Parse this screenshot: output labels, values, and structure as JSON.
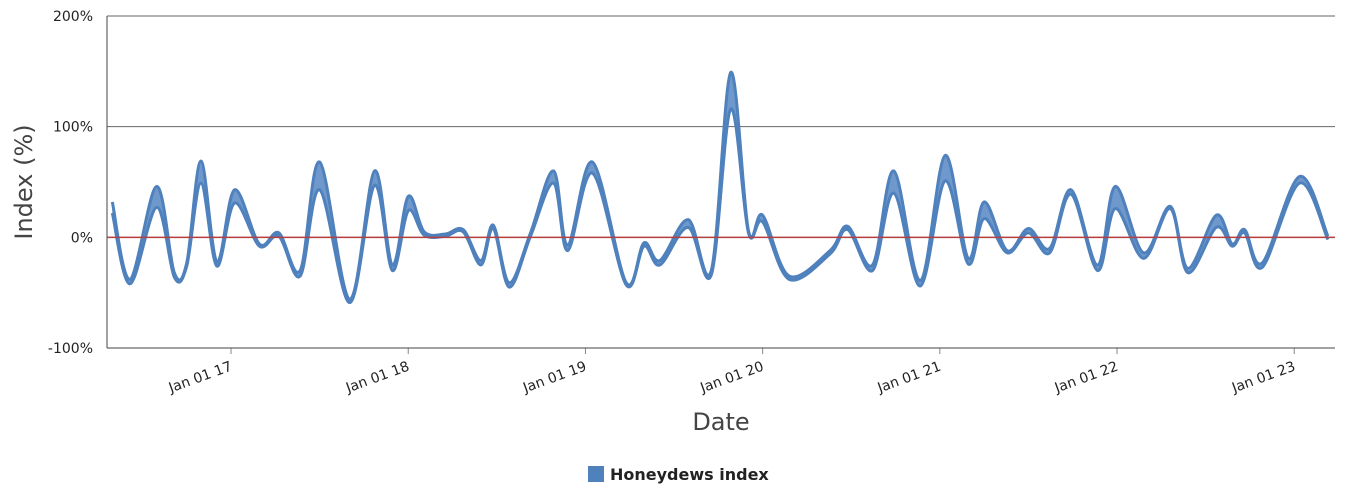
{
  "chart_data": {
    "type": "range-area",
    "x_label": "Date",
    "y_label": "Index (%)",
    "x": [
      2016.33,
      2016.43,
      2016.58,
      2016.68,
      2016.75,
      2016.83,
      2016.92,
      2017.02,
      2017.16,
      2017.27,
      2017.39,
      2017.5,
      2017.67,
      2017.81,
      2017.91,
      2018.0,
      2018.09,
      2018.21,
      2018.31,
      2018.41,
      2018.48,
      2018.57,
      2018.69,
      2018.82,
      2018.9,
      2019.04,
      2019.23,
      2019.33,
      2019.42,
      2019.58,
      2019.71,
      2019.82,
      2019.92,
      2020.0,
      2020.15,
      2020.38,
      2020.48,
      2020.62,
      2020.74,
      2020.89,
      2021.03,
      2021.16,
      2021.25,
      2021.38,
      2021.5,
      2021.62,
      2021.74,
      2021.89,
      2021.99,
      2022.15,
      2022.3,
      2022.4,
      2022.56,
      2022.65,
      2022.72,
      2022.82,
      2023.03,
      2023.19
    ],
    "series": [
      {
        "name": "Honeydews index",
        "color": "#4f81bd",
        "fill": "#6f98cc",
        "high": [
          32,
          -38,
          46,
          -32,
          -23,
          69,
          -22,
          43,
          -6,
          4,
          -30,
          68,
          -56,
          60,
          -25,
          37,
          5,
          3,
          7,
          -21,
          11,
          -41,
          4,
          60,
          -7,
          68,
          -41,
          -5,
          -21,
          16,
          -30,
          149,
          6,
          20,
          -35,
          -12,
          10,
          -25,
          60,
          -39,
          74,
          -19,
          32,
          -12,
          8,
          -10,
          43,
          -25,
          46,
          -14,
          28,
          -28,
          20,
          -6,
          7,
          -23,
          55,
          1
        ],
        "low": [
          22,
          -42,
          27,
          -36,
          -26,
          49,
          -26,
          31,
          -8,
          1,
          -35,
          43,
          -59,
          47,
          -30,
          24,
          2,
          1,
          5,
          -25,
          8,
          -45,
          1,
          49,
          -12,
          58,
          -43,
          -8,
          -25,
          9,
          -34,
          116,
          4,
          14,
          -38,
          -15,
          7,
          -30,
          40,
          -44,
          51,
          -24,
          17,
          -14,
          4,
          -14,
          39,
          -30,
          26,
          -19,
          26,
          -32,
          9,
          -8,
          4,
          -27,
          49,
          -2
        ]
      }
    ],
    "xlim": [
      2016.3,
      2023.23
    ],
    "xticks": [
      {
        "value": 2017,
        "label": "Jan 01 17"
      },
      {
        "value": 2018,
        "label": "Jan 01 18"
      },
      {
        "value": 2019,
        "label": "Jan 01 19"
      },
      {
        "value": 2020,
        "label": "Jan 01 20"
      },
      {
        "value": 2021,
        "label": "Jan 01 21"
      },
      {
        "value": 2022,
        "label": "Jan 01 22"
      },
      {
        "value": 2023,
        "label": "Jan 01 23"
      }
    ],
    "ylim": [
      -100,
      200
    ],
    "yticks": [
      {
        "value": -100,
        "label": "-100%"
      },
      {
        "value": 0,
        "label": "0%"
      },
      {
        "value": 100,
        "label": "100%"
      },
      {
        "value": 200,
        "label": "200%"
      }
    ],
    "grid": true,
    "zero_line_color": "#b5403f",
    "legend": "bottom"
  }
}
